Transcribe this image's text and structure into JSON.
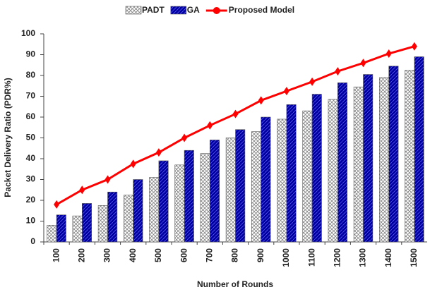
{
  "chart_data": {
    "type": "bar",
    "xlabel": "Number of Rounds",
    "ylabel": "Packet Delivery Ratio (PDR%)",
    "categories": [
      "100",
      "200",
      "300",
      "400",
      "500",
      "600",
      "700",
      "800",
      "900",
      "1000",
      "1100",
      "1200",
      "1300",
      "1400",
      "1500"
    ],
    "series": [
      {
        "name": "PADT",
        "type": "bar",
        "color": "#808080",
        "values": [
          8,
          12.5,
          17.5,
          22.5,
          31,
          37,
          42.5,
          50,
          53,
          59,
          63,
          68.5,
          74.5,
          79,
          82.5
        ]
      },
      {
        "name": "GA",
        "type": "bar",
        "color": "#0000a0",
        "values": [
          13,
          18.5,
          24,
          30,
          39,
          44,
          49,
          54,
          60,
          66,
          71,
          76.5,
          80.5,
          84.5,
          89
        ]
      },
      {
        "name": "Proposed Model",
        "type": "line",
        "color": "#ff0000",
        "values": [
          18,
          25,
          30,
          37.5,
          43,
          50,
          56,
          61.5,
          68,
          72.5,
          77,
          82,
          86,
          90.5,
          94
        ]
      }
    ],
    "ylim": [
      0,
      100
    ],
    "yticks": [
      0,
      10,
      20,
      30,
      40,
      50,
      60,
      70,
      80,
      90,
      100
    ],
    "grid": false,
    "legend": "top"
  }
}
